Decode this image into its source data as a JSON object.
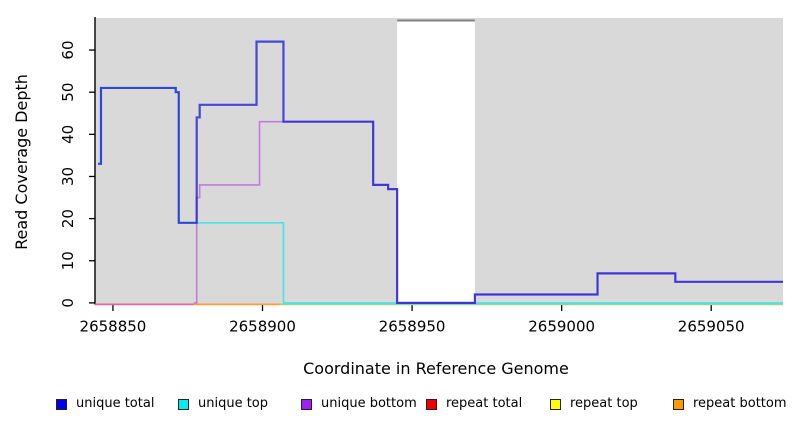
{
  "figure": {
    "xlabel": "Coordinate in Reference Genome",
    "ylabel": "Read Coverage Depth"
  },
  "chart_data": {
    "type": "line",
    "step": true,
    "title": "",
    "xlabel": "Coordinate in Reference Genome",
    "ylabel": "Read Coverage Depth",
    "xlim": [
      2658844,
      2659074
    ],
    "ylim": [
      0,
      67.6
    ],
    "x_ticks": [
      2658850,
      2658900,
      2658950,
      2659000,
      2659050
    ],
    "y_ticks": [
      0,
      10,
      20,
      30,
      40,
      50,
      60
    ],
    "grid": false,
    "panel_bg": "#d9d9d9",
    "gap_band": {
      "from": 2658945,
      "to": 2658971,
      "fill": "#ffffff",
      "border": "#808080"
    },
    "series": [
      {
        "name": "unique total",
        "legend_color": "#0000ee",
        "draw_color": "#2020d8",
        "opacity": 0.8,
        "width": 2.2,
        "points": [
          [
            2658845,
            33
          ],
          [
            2658846,
            51
          ],
          [
            2658871,
            50
          ],
          [
            2658872,
            19
          ],
          [
            2658878,
            44
          ],
          [
            2658879,
            47
          ],
          [
            2658898,
            62
          ],
          [
            2658907,
            43
          ],
          [
            2658937,
            28
          ],
          [
            2658942,
            27
          ],
          [
            2658945,
            0
          ],
          [
            2658971,
            2
          ],
          [
            2659012,
            7
          ],
          [
            2659038,
            5
          ]
        ],
        "xend": 2659074
      },
      {
        "name": "unique top",
        "legend_color": "#00eeee",
        "draw_color": "#49e2e4",
        "opacity": 1,
        "width": 1.6,
        "points": [
          [
            2658845,
            33
          ],
          [
            2658846,
            51
          ],
          [
            2658871,
            50
          ],
          [
            2658872,
            19
          ],
          [
            2658907,
            0
          ]
        ],
        "xend": 2659074
      },
      {
        "name": "unique bottom",
        "legend_color": "#a020f0",
        "draw_color": "#c47ae0",
        "opacity": 1,
        "width": 1.6,
        "draw_from": 2658877,
        "points": [
          [
            2658845,
            0
          ],
          [
            2658878,
            25
          ],
          [
            2658879,
            28
          ],
          [
            2658899,
            43
          ],
          [
            2658937,
            28
          ],
          [
            2658942,
            27
          ],
          [
            2658945,
            0
          ],
          [
            2658971,
            2
          ],
          [
            2659012,
            7
          ],
          [
            2659038,
            5
          ]
        ],
        "xend": 2659074
      },
      {
        "name": "repeat total",
        "legend_color": "#ee0000",
        "draw_color": "#e0679c",
        "opacity": 0,
        "width": 0,
        "points": [
          [
            2658845,
            0
          ]
        ],
        "xend": 2659074
      },
      {
        "name": "repeat top",
        "legend_color": "#ffff00",
        "draw_color": "#ffff00",
        "opacity": 0,
        "width": 0,
        "points": [
          [
            2658845,
            0
          ]
        ],
        "xend": 2659074
      },
      {
        "name": "repeat bottom",
        "legend_color": "#ff9900",
        "draw_color": "#ff9d2e",
        "opacity": 0,
        "width": 0,
        "points": [
          [
            2658845,
            0
          ]
        ],
        "xend": 2659074
      }
    ],
    "baseline_overlay_segments": [
      {
        "from": 2658844,
        "to": 2658877,
        "color": "#e0679c"
      },
      {
        "from": 2658877,
        "to": 2658906,
        "color": "#ff9d2e"
      },
      {
        "from": 2658906,
        "to": 2659074,
        "color": "#8fd69f"
      }
    ],
    "legend": [
      {
        "label": "unique total",
        "color": "#0000ee"
      },
      {
        "label": "unique top",
        "color": "#00eeee"
      },
      {
        "label": "unique bottom",
        "color": "#a020f0"
      },
      {
        "label": "repeat total",
        "color": "#ee0000"
      },
      {
        "label": "repeat top",
        "color": "#ffff00"
      },
      {
        "label": "repeat bottom",
        "color": "#ff9900"
      }
    ],
    "legend_position": "bottom"
  }
}
